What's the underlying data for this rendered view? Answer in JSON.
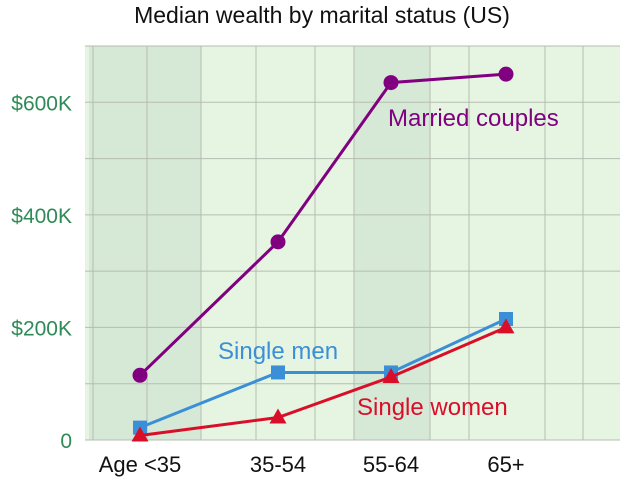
{
  "chart_data": {
    "type": "line",
    "title": "Median wealth by marital status (US)",
    "xlabel": "",
    "ylabel": "",
    "categories": [
      "Age <35",
      "35-54",
      "55-64",
      "65+"
    ],
    "ylim": [
      0,
      700000
    ],
    "yticks": [
      {
        "value": 0,
        "label": "0"
      },
      {
        "value": 200000,
        "label": "$200K"
      },
      {
        "value": 400000,
        "label": "$400K"
      },
      {
        "value": 600000,
        "label": "$600K"
      }
    ],
    "grid": true,
    "series": [
      {
        "name": "Married couples",
        "values": [
          115000,
          352000,
          635000,
          650000
        ],
        "color": "#800080",
        "marker": "circle"
      },
      {
        "name": "Single men",
        "values": [
          22000,
          120000,
          120000,
          215000
        ],
        "color": "#3b8fd6",
        "marker": "square"
      },
      {
        "name": "Single women",
        "values": [
          8000,
          40000,
          112000,
          200000
        ],
        "color": "#d90f2a",
        "marker": "triangle"
      }
    ]
  },
  "colors": {
    "plot_background": "#e6f5e1",
    "shaded_band": "#d6e8d6",
    "tick_label": "#2e8b57",
    "category_label": "#111111",
    "grid": "#b5bdb2"
  }
}
